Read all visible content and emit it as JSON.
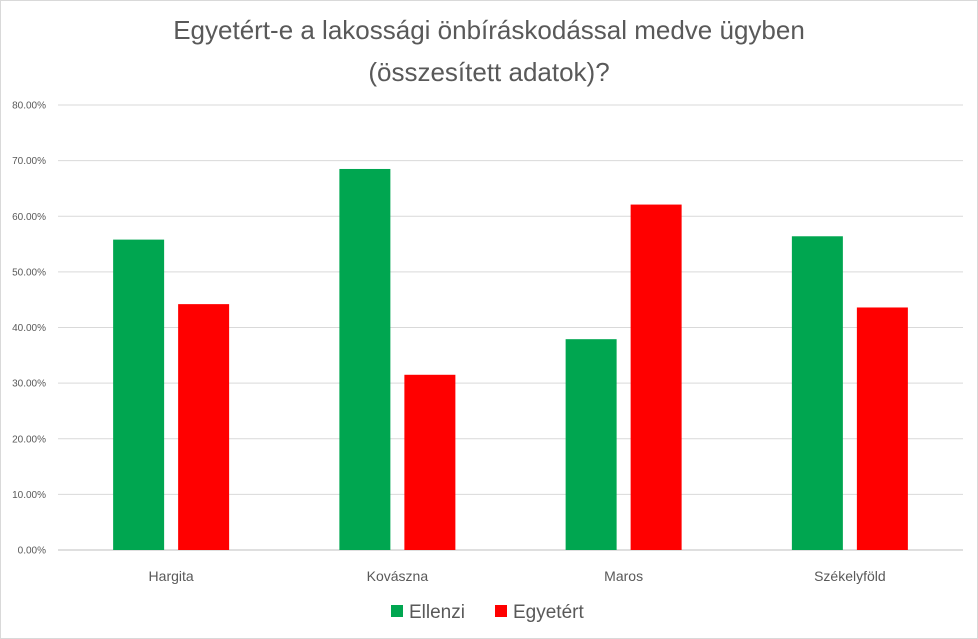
{
  "chart_data": {
    "type": "bar",
    "title_lines": [
      "Egyetért-e a lakossági önbíráskodással medve ügyben",
      "(összesített adatok)?"
    ],
    "categories": [
      "Hargita",
      "Kovászna",
      "Maros",
      "Székelyföld"
    ],
    "series": [
      {
        "name": "Ellenzi",
        "color": "#00a650",
        "values": [
          55.8,
          68.5,
          37.9,
          56.4
        ]
      },
      {
        "name": "Egyetért",
        "color": "#ff0000",
        "values": [
          44.2,
          31.5,
          62.1,
          43.6
        ]
      }
    ],
    "y_ticks": [
      "0.00%",
      "10.00%",
      "20.00%",
      "30.00%",
      "40.00%",
      "50.00%",
      "60.00%",
      "70.00%",
      "80.00%"
    ],
    "ylim": [
      0,
      80
    ],
    "xlabel": "",
    "ylabel": "",
    "grid": true,
    "legend_position": "bottom"
  }
}
